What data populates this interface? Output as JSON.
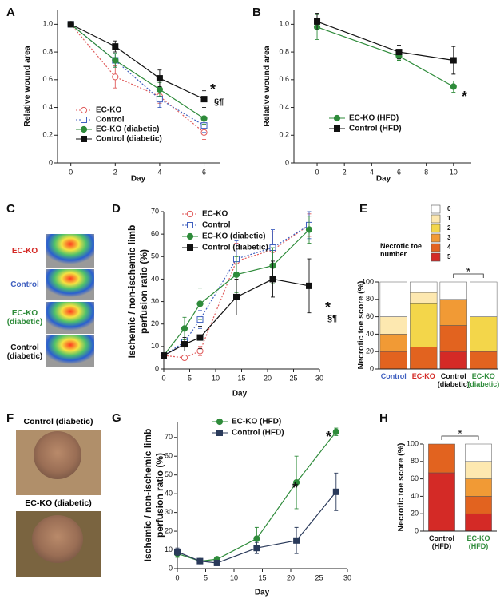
{
  "chart_data": [
    {
      "type": "line",
      "panel": "A",
      "ylabel": "Relative wound area",
      "xlabel": "Day",
      "x": [
        0,
        2,
        4,
        6
      ],
      "xlim": [
        -0.6,
        6.7
      ],
      "xticks": [
        0,
        2,
        4,
        6
      ],
      "ylim": [
        0,
        1.1
      ],
      "yticks": [
        0,
        0.2,
        0.4,
        0.6,
        0.8,
        {
          "value": 1,
          "label": "1.0"
        }
      ],
      "series": [
        {
          "name": "EC-KO",
          "color": "#e05a5a",
          "marker": "circle",
          "filled": false,
          "dashed": true,
          "values": [
            1,
            0.62,
            0.48,
            0.22
          ],
          "errors": [
            0,
            0.08,
            0.05,
            0.05
          ]
        },
        {
          "name": "Control",
          "color": "#3f5fbf",
          "marker": "square",
          "filled": false,
          "dashed": true,
          "values": [
            1,
            0.74,
            0.46,
            0.27
          ],
          "errors": [
            0,
            0.05,
            0.06,
            0.05
          ]
        },
        {
          "name": "EC-KO (diabetic)",
          "color": "#2e8b3a",
          "marker": "circle",
          "filled": true,
          "dashed": false,
          "values": [
            1,
            0.74,
            0.53,
            0.32
          ],
          "errors": [
            0,
            0.05,
            0.05,
            0.04
          ]
        },
        {
          "name": "Control (diabetic)",
          "color": "#111111",
          "marker": "square",
          "filled": true,
          "dashed": false,
          "values": [
            1,
            0.84,
            0.61,
            0.46
          ],
          "errors": [
            0,
            0.04,
            0.06,
            0.06
          ]
        }
      ],
      "annotations": [
        "*",
        "§¶"
      ]
    },
    {
      "type": "line",
      "panel": "B",
      "ylabel": "Relative wound area",
      "xlabel": "Day",
      "x": [
        0,
        6,
        10
      ],
      "xlim": [
        -1.7,
        11.3
      ],
      "xticks": [
        0,
        2,
        4,
        6,
        8,
        10
      ],
      "ylim": [
        0,
        1.1
      ],
      "yticks": [
        0,
        0.2,
        0.4,
        0.6,
        0.8,
        {
          "value": 1,
          "label": "1.0"
        }
      ],
      "series": [
        {
          "name": "EC-KO (HFD)",
          "color": "#2e8b3a",
          "marker": "circle",
          "filled": true,
          "dashed": false,
          "values": [
            0.98,
            0.77,
            0.55
          ],
          "errors": [
            0.09,
            0.03,
            0.04
          ]
        },
        {
          "name": "Control (HFD)",
          "color": "#111111",
          "marker": "square",
          "filled": true,
          "dashed": false,
          "values": [
            1.02,
            0.8,
            0.74
          ],
          "errors": [
            0.06,
            0.05,
            0.1
          ]
        }
      ],
      "annotations": [
        "*"
      ]
    },
    {
      "type": "line",
      "panel": "D",
      "ylabel": [
        "Ischemic / non-ischemic limb",
        "perfusion ratio (%)"
      ],
      "xlabel": "Day",
      "x": [
        0,
        4,
        7,
        14,
        21,
        28
      ],
      "xlim": [
        0,
        30
      ],
      "xticks": [
        0,
        5,
        10,
        15,
        20,
        25,
        30
      ],
      "ylim": [
        0,
        70
      ],
      "yticks": [
        0,
        10,
        20,
        30,
        40,
        50,
        60,
        70
      ],
      "series": [
        {
          "name": "EC-KO",
          "color": "#e05a5a",
          "marker": "circle",
          "filled": false,
          "dashed": true,
          "values": [
            6,
            5,
            8,
            48,
            53,
            64
          ],
          "errors": [
            1,
            1,
            2,
            8,
            8,
            5
          ]
        },
        {
          "name": "Control",
          "color": "#3f5fbf",
          "marker": "square",
          "filled": false,
          "dashed": true,
          "values": [
            6,
            12,
            22,
            49,
            54,
            64
          ],
          "errors": [
            1,
            2,
            4,
            8,
            8,
            6
          ]
        },
        {
          "name": "EC-KO (diabetic)",
          "color": "#2e8b3a",
          "marker": "circle",
          "filled": true,
          "dashed": false,
          "values": [
            6,
            18,
            29,
            42,
            46,
            62
          ],
          "errors": [
            1,
            5,
            7,
            8,
            8,
            6
          ]
        },
        {
          "name": "Control (diabetic)",
          "color": "#111111",
          "marker": "square",
          "filled": true,
          "dashed": false,
          "values": [
            6,
            11,
            14,
            32,
            40,
            37
          ],
          "errors": [
            1,
            3,
            5,
            8,
            8,
            12
          ]
        }
      ],
      "annotations": [
        "*",
        "§¶"
      ]
    },
    {
      "type": "stacked_bar",
      "panel": "E",
      "ylabel": "Necrotic toe score (%)",
      "legend_title": "Necrotic toe number",
      "categories": [
        "Control",
        "EC-KO",
        "Control (diabetic)",
        "EC-KO (diabetic)"
      ],
      "category_colors": [
        "#3f5fbf",
        "#d42a26",
        "#111111",
        "#2e8b3a"
      ],
      "ylim": [
        0,
        100
      ],
      "yticks": [
        0,
        20,
        40,
        60,
        80,
        100
      ],
      "series": [
        {
          "name": "0",
          "color": "#ffffff",
          "values": [
            40,
            12,
            20,
            40
          ]
        },
        {
          "name": "1",
          "color": "#fde8b0",
          "values": [
            20,
            13,
            0,
            0
          ]
        },
        {
          "name": "2",
          "color": "#f3d64a",
          "values": [
            0,
            50,
            0,
            40
          ]
        },
        {
          "name": "3",
          "color": "#f19a35",
          "values": [
            20,
            0,
            30,
            0
          ]
        },
        {
          "name": "4",
          "color": "#e2631f",
          "values": [
            20,
            25,
            30,
            20
          ]
        },
        {
          "name": "5",
          "color": "#d42a26",
          "values": [
            0,
            0,
            20,
            0
          ]
        }
      ],
      "annotations": [
        "*"
      ]
    },
    {
      "type": "line",
      "panel": "G",
      "ylabel": [
        "Ischemic / non-ischemic limb",
        "perfusion ratio (%)"
      ],
      "xlabel": "Day",
      "x": [
        0,
        4,
        7,
        14,
        21,
        28
      ],
      "xlim": [
        0,
        30
      ],
      "xticks": [
        0,
        5,
        10,
        15,
        20,
        25,
        30
      ],
      "ylim": [
        0,
        78
      ],
      "yticks": [
        0,
        10,
        20,
        30,
        40,
        50,
        60,
        70
      ],
      "series": [
        {
          "name": "EC-KO (HFD)",
          "color": "#2e8b3a",
          "marker": "circle",
          "filled": true,
          "dashed": false,
          "values": [
            8,
            4,
            5,
            16,
            46,
            73
          ],
          "errors": [
            2,
            1,
            1,
            6,
            14,
            2
          ]
        },
        {
          "name": "Control (HFD)",
          "color": "#2a3a5a",
          "marker": "square",
          "filled": true,
          "dashed": false,
          "values": [
            9,
            4,
            3,
            11,
            15,
            41
          ],
          "errors": [
            2,
            1,
            1,
            3,
            7,
            10
          ]
        }
      ],
      "annotations": [
        "*",
        "*"
      ]
    },
    {
      "type": "stacked_bar",
      "panel": "H",
      "ylabel": "Necrotic toe score (%)",
      "categories": [
        "Control (HFD)",
        "EC-KO (HFD)"
      ],
      "category_colors": [
        "#111111",
        "#2e8b3a"
      ],
      "ylim": [
        0,
        100
      ],
      "yticks": [
        0,
        20,
        40,
        60,
        80,
        100
      ],
      "series": [
        {
          "color": "#ffffff",
          "values": [
            0,
            20
          ]
        },
        {
          "color": "#fde8b0",
          "values": [
            0,
            20
          ]
        },
        {
          "color": "#f19a35",
          "values": [
            0,
            20
          ]
        },
        {
          "color": "#e2631f",
          "values": [
            33,
            20
          ]
        },
        {
          "color": "#d42a26",
          "values": [
            67,
            20
          ]
        }
      ],
      "annotations": [
        "*"
      ]
    }
  ],
  "panel_c": {
    "panel": "C",
    "labels": [
      "EC-KO",
      "Control",
      "EC-KO (diabetic)",
      "Control (diabetic)"
    ],
    "label_colors": [
      "#d42a26",
      "#3f5fbf",
      "#2e8b3a",
      "#111111"
    ]
  },
  "panel_f": {
    "panel": "F",
    "labels": [
      "Control (diabetic)",
      "EC-KO (diabetic)"
    ]
  }
}
